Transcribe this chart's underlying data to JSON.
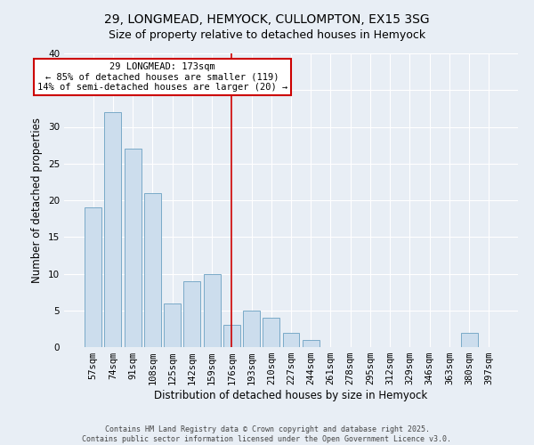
{
  "title1": "29, LONGMEAD, HEMYOCK, CULLOMPTON, EX15 3SG",
  "title2": "Size of property relative to detached houses in Hemyock",
  "xlabel": "Distribution of detached houses by size in Hemyock",
  "ylabel": "Number of detached properties",
  "categories": [
    "57sqm",
    "74sqm",
    "91sqm",
    "108sqm",
    "125sqm",
    "142sqm",
    "159sqm",
    "176sqm",
    "193sqm",
    "210sqm",
    "227sqm",
    "244sqm",
    "261sqm",
    "278sqm",
    "295sqm",
    "312sqm",
    "329sqm",
    "346sqm",
    "363sqm",
    "380sqm",
    "397sqm"
  ],
  "values": [
    19,
    32,
    27,
    21,
    6,
    9,
    10,
    3,
    5,
    4,
    2,
    1,
    0,
    0,
    0,
    0,
    0,
    0,
    0,
    2,
    0
  ],
  "bar_color": "#ccdded",
  "bar_edge_color": "#7aaac8",
  "vline_x": 7,
  "vline_color": "#cc0000",
  "annotation_text": "29 LONGMEAD: 173sqm\n← 85% of detached houses are smaller (119)\n14% of semi-detached houses are larger (20) →",
  "annotation_box_color": "#ffffff",
  "annotation_box_edge": "#cc0000",
  "ylim": [
    0,
    40
  ],
  "yticks": [
    0,
    5,
    10,
    15,
    20,
    25,
    30,
    35,
    40
  ],
  "footer_text": "Contains HM Land Registry data © Crown copyright and database right 2025.\nContains public sector information licensed under the Open Government Licence v3.0.",
  "bg_color": "#e8eef5",
  "grid_color": "#ffffff",
  "title_fontsize": 10,
  "subtitle_fontsize": 9,
  "axis_fontsize": 8.5,
  "tick_fontsize": 7.5,
  "annot_fontsize": 7.5,
  "footer_fontsize": 6
}
